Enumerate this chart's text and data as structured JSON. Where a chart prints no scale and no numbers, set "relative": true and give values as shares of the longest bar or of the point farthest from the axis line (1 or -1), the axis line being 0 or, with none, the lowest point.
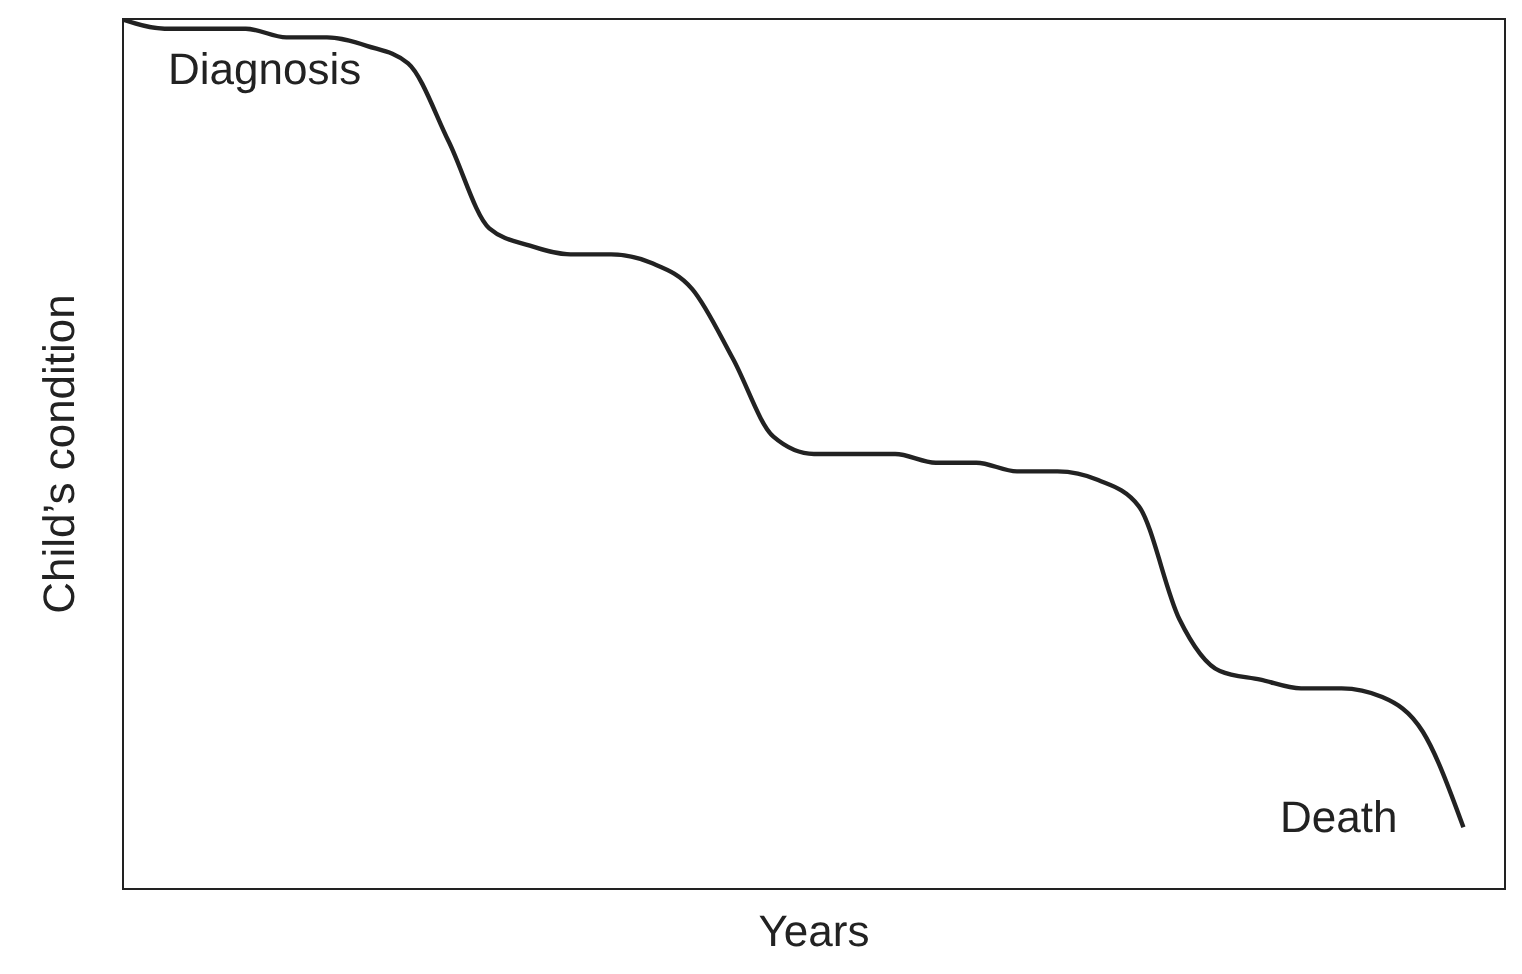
{
  "chart_data": {
    "type": "line",
    "relative": true,
    "xlabel": "Years",
    "ylabel": "Child’s condition",
    "categories": [
      null,
      null,
      null,
      null,
      null,
      null,
      null,
      null,
      null,
      null,
      null,
      null,
      null,
      null,
      null,
      null,
      null,
      null,
      null,
      null,
      null,
      null,
      null,
      null,
      null,
      null,
      null,
      null,
      null,
      null,
      null,
      null,
      null,
      null,
      null
    ],
    "series": [
      {
        "color": "#222222",
        "values": [
          1,
          0.99,
          0.99,
          0.99,
          0.98,
          0.98,
          0.97,
          0.95,
          0.86,
          0.76,
          0.74,
          0.73,
          0.73,
          0.72,
          0.69,
          0.61,
          0.52,
          0.5,
          0.5,
          0.5,
          0.49,
          0.49,
          0.48,
          0.48,
          0.47,
          0.44,
          0.31,
          0.25,
          0.24,
          0.23,
          0.23,
          0.22,
          0.18,
          0.07,
          null
        ]
      }
    ],
    "annotations": [
      "Diagnosis",
      "Death"
    ],
    "grid": false,
    "legend": false,
    "marker": "none",
    "line_style": "solid"
  }
}
